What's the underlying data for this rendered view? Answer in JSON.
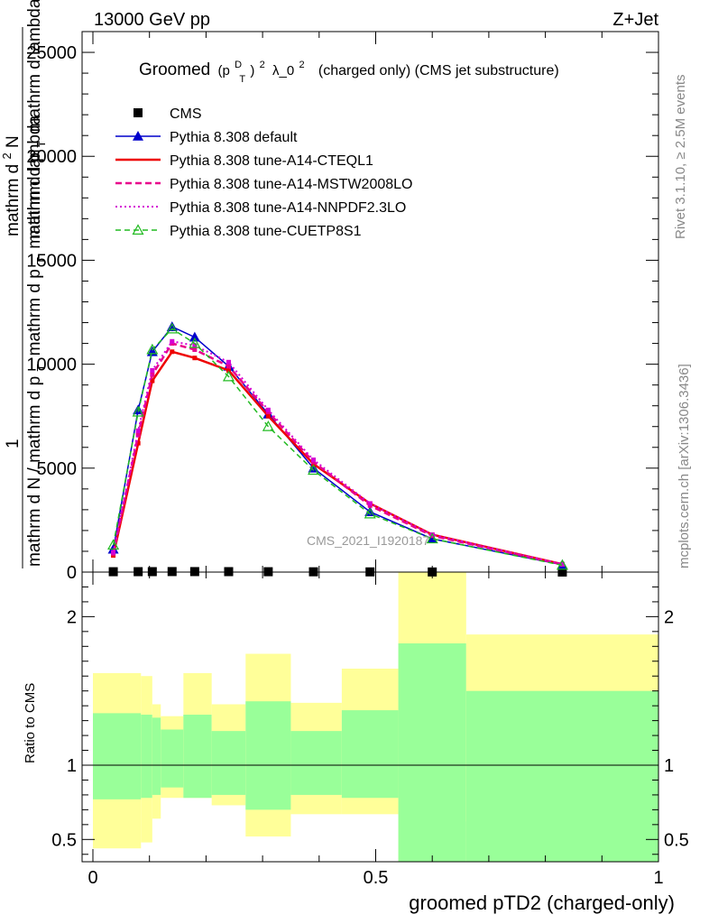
{
  "header": {
    "left": "13000 GeV pp",
    "right": "Z+Jet"
  },
  "side_labels": {
    "rivet": "Rivet 3.1.10, ≥ 2.5M events",
    "mcplots": "mcplots.cern.ch [arXiv:1306.3436]"
  },
  "colors": {
    "data": "#000000",
    "default": "#0000cc",
    "cteql1": "#ee0000",
    "mstw": "#e8008c",
    "nnpdf": "#d400d4",
    "cuetp8s1": "#22bb22",
    "band_inner": "#99ff99",
    "band_outer": "#ffff99"
  },
  "chart_data": {
    "type": "line",
    "title_parts": {
      "groomed": "Groomed",
      "p": "(p",
      "sup_d": "D",
      "sub_t": "T",
      "close_sq": ")",
      "sup_2a": "2",
      "lambda": "λ_0",
      "sup_2b": "2",
      "rest": "(charged only) (CMS jet substructure)"
    },
    "ylabel_parts": {
      "one": "1",
      "numer": "mathrm d",
      "numer_sup": "2",
      "numer_n": "N",
      "denom1": "mathrm d p",
      "denom1_sub": "T",
      "denom1_rest": "mathrm d lambda",
      "lower": "mathrm d N / mathrm d p",
      "lower_sub": "T",
      "lower_rest": "mathrm d p",
      "lower_sub2": "T",
      "lower_rest2": "mathrm d lambda"
    },
    "xlabel": "groomed pTD2 (charged-only)",
    "ratio_ylabel": "Ratio to CMS",
    "watermark": "CMS_2021_I1920187",
    "xlim": [
      -0.02,
      1.0
    ],
    "ylim": [
      0,
      26000
    ],
    "ratio_ylim": [
      0.35,
      2.3
    ],
    "main_yticks": [
      0,
      5000,
      10000,
      15000,
      20000,
      25000
    ],
    "main_ytick_labels": [
      "0",
      "5000",
      "10000",
      "15000",
      "20000",
      "25000"
    ],
    "ratio_yticks": [
      0.5,
      1,
      2
    ],
    "ratio_ytick_labels": [
      "0.5",
      "1",
      "2"
    ],
    "xticks": [
      0,
      0.5,
      1
    ],
    "xtick_labels": [
      "0",
      "0.5",
      "1"
    ],
    "x": [
      0.036,
      0.08,
      0.105,
      0.14,
      0.18,
      0.24,
      0.31,
      0.39,
      0.49,
      0.6,
      0.83
    ],
    "bin_edges": [
      0.0,
      0.09,
      0.15,
      0.27,
      0.37,
      0.47,
      0.58,
      0.67,
      1.0
    ],
    "series": [
      {
        "name": "CMS",
        "key": "data",
        "style": "square",
        "values": [
          18,
          20,
          22,
          25,
          24,
          22,
          18,
          14,
          10,
          6,
          2
        ]
      },
      {
        "name": "Pythia 8.308 default",
        "key": "default",
        "style": "line-triangle",
        "values": [
          1100,
          7800,
          10600,
          11800,
          11300,
          9900,
          7600,
          5000,
          2900,
          1600,
          350
        ]
      },
      {
        "name": "Pythia 8.308 tune-A14-CTEQL1",
        "key": "cteql1",
        "style": "line",
        "values": [
          800,
          6200,
          9200,
          10600,
          10300,
          9700,
          7500,
          5200,
          3300,
          1800,
          380
        ]
      },
      {
        "name": "Pythia 8.308 tune-A14-MSTW2008LO",
        "key": "mstw",
        "style": "dash",
        "values": [
          900,
          6600,
          9500,
          11000,
          10700,
          9900,
          7700,
          5300,
          3200,
          1750,
          370
        ]
      },
      {
        "name": "Pythia 8.308 tune-A14-NNPDF2.3LO",
        "key": "nnpdf",
        "style": "dot",
        "values": [
          950,
          6800,
          9700,
          11100,
          10900,
          10100,
          7800,
          5400,
          3300,
          1800,
          380
        ]
      },
      {
        "name": "Pythia 8.308 tune-CUETP8S1",
        "key": "cuetp8s1",
        "style": "dash-open-triangle",
        "values": [
          1300,
          7700,
          10700,
          11700,
          11000,
          9400,
          7000,
          4900,
          2800,
          1600,
          330
        ]
      }
    ],
    "ratio_bands": {
      "inner_low": [
        0.77,
        0.78,
        0.8,
        0.85,
        0.78,
        0.8,
        0.7,
        0.8,
        0.78,
        0.35,
        0.35,
        0.35
      ],
      "inner_high": [
        1.35,
        1.34,
        1.32,
        1.24,
        1.34,
        1.23,
        1.43,
        1.23,
        1.37,
        1.82,
        1.5,
        1.5
      ],
      "outer_low": [
        0.44,
        0.48,
        0.64,
        0.78,
        0.78,
        0.73,
        0.52,
        0.67,
        0.67,
        0.35,
        0.62,
        0.62
      ],
      "outer_high": [
        1.62,
        1.6,
        1.41,
        1.33,
        1.62,
        1.41,
        1.75,
        1.42,
        1.65,
        2.3,
        1.88,
        1.88
      ],
      "edges": [
        0.0,
        0.085,
        0.105,
        0.12,
        0.16,
        0.21,
        0.27,
        0.35,
        0.44,
        0.54,
        0.66,
        1.0
      ]
    }
  }
}
